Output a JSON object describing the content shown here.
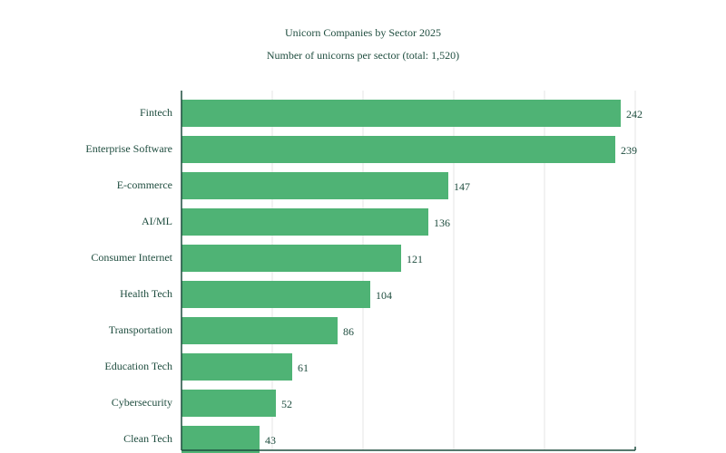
{
  "chart_data": {
    "type": "bar",
    "orientation": "horizontal",
    "title": "Unicorn Companies by Sector 2025",
    "subtitle": "Number of unicorns per sector (total: 1,520)",
    "categories": [
      "Fintech",
      "Enterprise Software",
      "E-commerce",
      "AI/ML",
      "Consumer Internet",
      "Health Tech",
      "Transportation",
      "Education Tech",
      "Cybersecurity",
      "Clean Tech"
    ],
    "values": [
      242,
      239,
      147,
      136,
      121,
      104,
      86,
      61,
      52,
      43
    ],
    "xlim": [
      0,
      250
    ],
    "grid": true,
    "legend": "none"
  },
  "colors": {
    "bar": "#4fb375",
    "text": "#1f4d3f",
    "grid": "#e6e6e6",
    "axis": "#1f4d3f"
  }
}
